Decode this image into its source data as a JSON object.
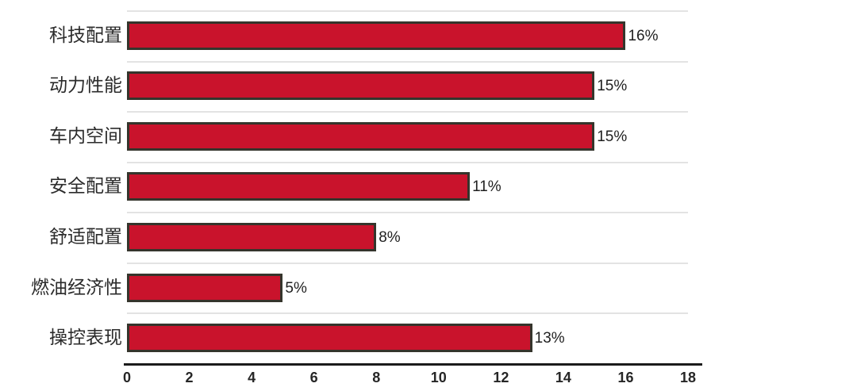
{
  "chart_data": {
    "type": "bar",
    "orientation": "horizontal",
    "title": "",
    "xlabel": "",
    "ylabel": "",
    "categories": [
      "科技配置",
      "动力性能",
      "车内空间",
      "安全配置",
      "舒适配置",
      "燃油经济性",
      "操控表现"
    ],
    "values": [
      16,
      15,
      15,
      11,
      8,
      5,
      13
    ],
    "value_labels": [
      "16%",
      "15%",
      "15%",
      "11%",
      "8%",
      "5%",
      "13%"
    ],
    "x_ticks": [
      "0",
      "2",
      "4",
      "6",
      "8",
      "10",
      "12",
      "14",
      "16",
      "18"
    ],
    "x_tick_values": [
      0,
      2,
      4,
      6,
      8,
      10,
      12,
      14,
      16,
      18
    ],
    "xlim": [
      0,
      18
    ],
    "legend": null,
    "grid": "horizontal-row-separators",
    "colors": {
      "bar_fill": "#c9132c",
      "bar_border": "#35352c",
      "gridline": "#e3e3e3",
      "axis_line": "#1b1b1b",
      "tick_text": "#262626",
      "label_text": "#2b2b2b",
      "background": "#ffffff"
    }
  }
}
